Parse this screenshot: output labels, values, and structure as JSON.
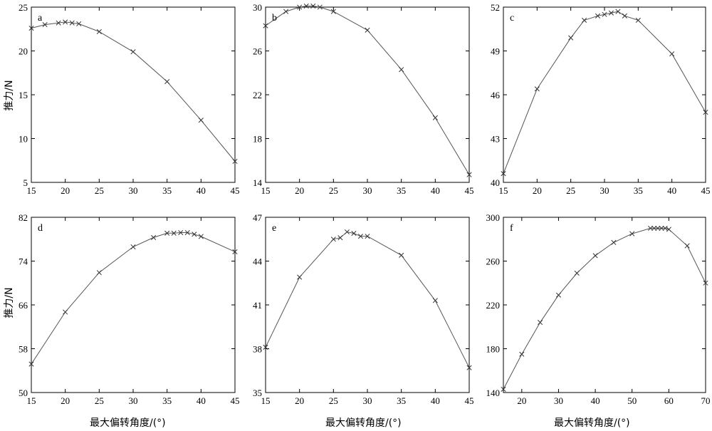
{
  "xlabel": "最大偏转角度/(°)",
  "ylabel": "推力/N",
  "chart_data": [
    {
      "type": "line",
      "label": "a",
      "xlim": [
        15,
        45
      ],
      "ylim": [
        5,
        25
      ],
      "xticks": [
        15,
        20,
        25,
        30,
        35,
        40,
        45
      ],
      "yticks": [
        5,
        10,
        15,
        20,
        25
      ],
      "x": [
        15,
        17,
        19,
        20,
        21,
        22,
        25,
        30,
        35,
        40,
        45
      ],
      "y": [
        22.6,
        23.0,
        23.2,
        23.3,
        23.2,
        23.1,
        22.2,
        19.9,
        16.5,
        12.1,
        7.4
      ]
    },
    {
      "type": "line",
      "label": "b",
      "xlim": [
        15,
        45
      ],
      "ylim": [
        14,
        30
      ],
      "xticks": [
        15,
        20,
        25,
        30,
        35,
        40,
        45
      ],
      "yticks": [
        14,
        18,
        22,
        26,
        30
      ],
      "x": [
        15,
        18,
        20,
        21,
        22,
        23,
        25,
        30,
        35,
        40,
        45
      ],
      "y": [
        28.3,
        29.6,
        30.0,
        30.1,
        30.1,
        30.0,
        29.6,
        27.9,
        24.3,
        19.9,
        14.7
      ]
    },
    {
      "type": "line",
      "label": "c",
      "xlim": [
        15,
        45
      ],
      "ylim": [
        40,
        52
      ],
      "xticks": [
        15,
        20,
        25,
        30,
        35,
        40,
        45
      ],
      "yticks": [
        40,
        43,
        46,
        49,
        52
      ],
      "x": [
        15,
        20,
        25,
        27,
        29,
        30,
        31,
        32,
        33,
        35,
        40,
        45
      ],
      "y": [
        40.6,
        46.4,
        49.9,
        51.1,
        51.4,
        51.5,
        51.6,
        51.7,
        51.4,
        51.1,
        48.8,
        44.8
      ]
    },
    {
      "type": "line",
      "label": "d",
      "xlim": [
        15,
        45
      ],
      "ylim": [
        50,
        82
      ],
      "xticks": [
        15,
        20,
        25,
        30,
        35,
        40,
        45
      ],
      "yticks": [
        50,
        58,
        66,
        74,
        82
      ],
      "x": [
        15,
        20,
        25,
        30,
        33,
        35,
        36,
        37,
        38,
        39,
        40,
        45
      ],
      "y": [
        55.2,
        64.7,
        71.9,
        76.6,
        78.3,
        79.1,
        79.1,
        79.2,
        79.2,
        78.9,
        78.5,
        75.7
      ]
    },
    {
      "type": "line",
      "label": "e",
      "xlim": [
        15,
        45
      ],
      "ylim": [
        35,
        47
      ],
      "xticks": [
        15,
        20,
        25,
        30,
        35,
        40,
        45
      ],
      "yticks": [
        35,
        38,
        41,
        44,
        47
      ],
      "x": [
        15,
        20,
        25,
        26,
        27,
        28,
        29,
        30,
        35,
        40,
        45
      ],
      "y": [
        38.1,
        42.9,
        45.5,
        45.6,
        46.0,
        45.9,
        45.7,
        45.7,
        44.4,
        41.3,
        36.7
      ]
    },
    {
      "type": "line",
      "label": "f",
      "xlim": [
        15,
        70
      ],
      "ylim": [
        140,
        300
      ],
      "xticks": [
        20,
        30,
        40,
        50,
        60,
        70
      ],
      "yticks": [
        140,
        180,
        220,
        260,
        300
      ],
      "x": [
        15,
        20,
        25,
        30,
        35,
        40,
        45,
        50,
        55,
        56,
        57,
        58,
        59,
        60,
        65,
        70
      ],
      "y": [
        143,
        175,
        204,
        229,
        249,
        265,
        277,
        285,
        290,
        290,
        290,
        290,
        290,
        289,
        274,
        240
      ]
    }
  ]
}
